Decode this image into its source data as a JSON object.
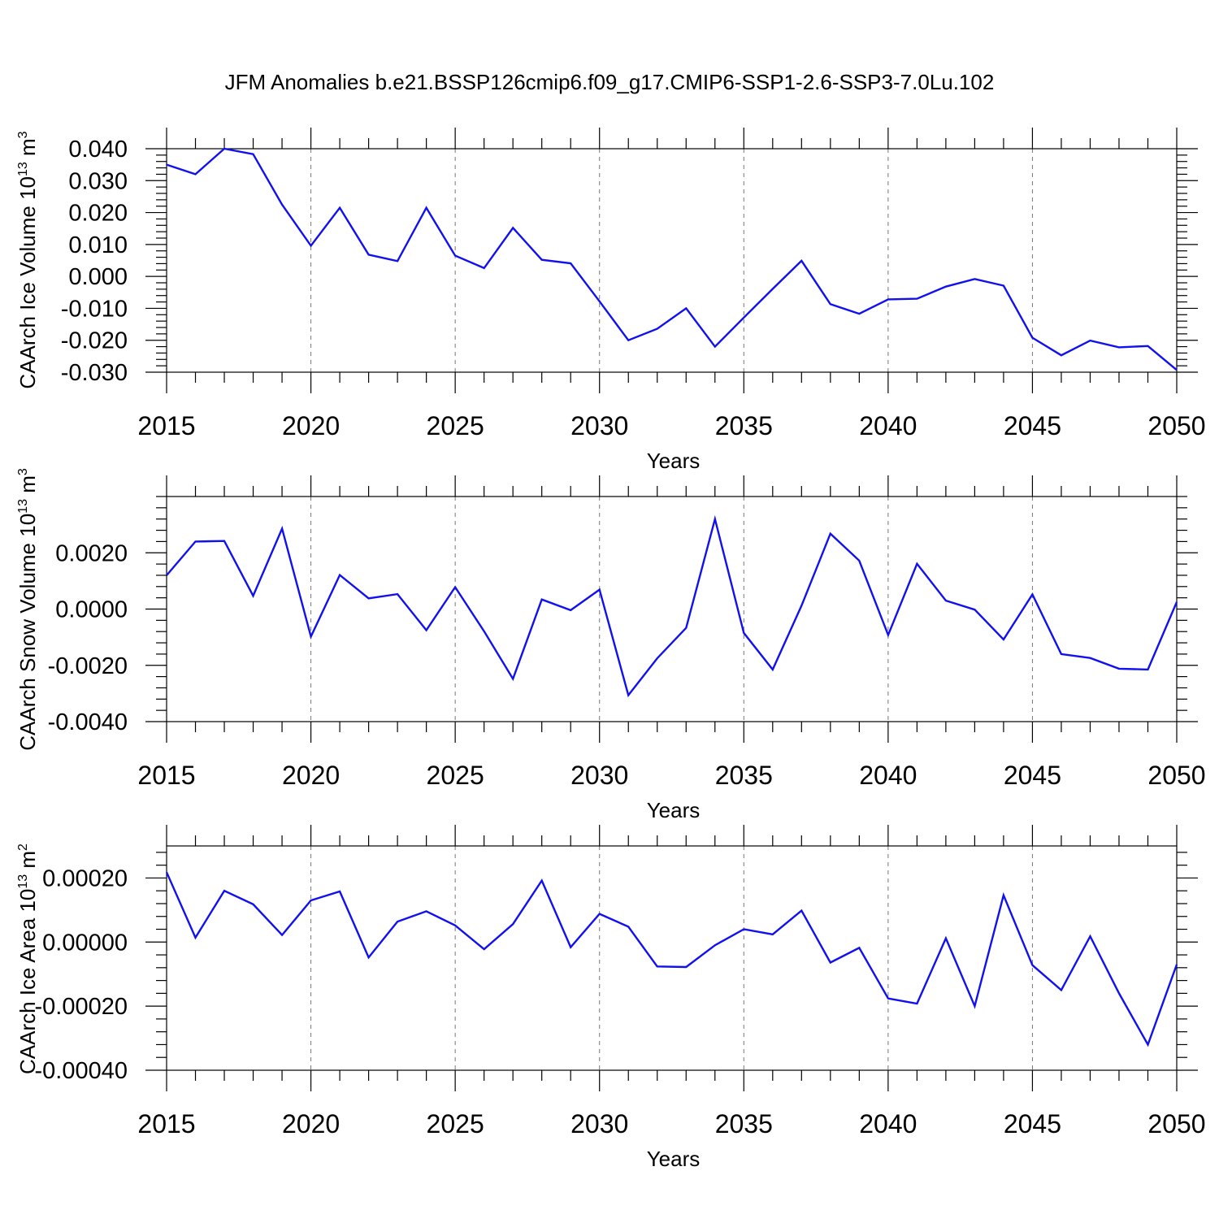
{
  "title": "JFM Anomalies b.e21.BSSP126cmip6.f09_g17.CMIP6-SSP1-2.6-SSP3-7.0Lu.102",
  "colors": {
    "series": "#1010f0",
    "axes": "#000000",
    "grid": "#777777"
  },
  "chart_data": [
    {
      "type": "line",
      "xlabel": "Years",
      "ylabel": "CAArch Ice Volume 10",
      "ylabel_exp": "13",
      "ylabel_unit": " m",
      "ylabel_unit_exp": "3",
      "xlim": [
        2015,
        2050
      ],
      "ylim": [
        -0.03,
        0.04
      ],
      "grid": "dashed vertical at major x ticks",
      "xticks": [
        "2015",
        "2020",
        "2025",
        "2030",
        "2035",
        "2040",
        "2045",
        "2050"
      ],
      "yticks": [
        {
          "v": 0.04,
          "label": "0.040"
        },
        {
          "v": 0.03,
          "label": "0.030"
        },
        {
          "v": 0.02,
          "label": "0.020"
        },
        {
          "v": 0.01,
          "label": "0.010"
        },
        {
          "v": 0.0,
          "label": "0.000"
        },
        {
          "v": -0.01,
          "label": "-0.010"
        },
        {
          "v": -0.02,
          "label": "-0.020"
        },
        {
          "v": -0.03,
          "label": "-0.030"
        }
      ],
      "x": [
        2015,
        2016,
        2017,
        2018,
        2019,
        2020,
        2021,
        2022,
        2023,
        2024,
        2025,
        2026,
        2027,
        2028,
        2029,
        2030,
        2031,
        2032,
        2033,
        2034,
        2035,
        2036,
        2037,
        2038,
        2039,
        2040,
        2041,
        2042,
        2043,
        2044,
        2045,
        2046,
        2047,
        2048,
        2049,
        2050
      ],
      "values": [
        0.035,
        0.032,
        0.04,
        0.0383,
        0.0225,
        0.0096,
        0.0215,
        0.0068,
        0.0048,
        0.0215,
        0.0065,
        0.0026,
        0.0152,
        0.0052,
        0.0041,
        -0.0078,
        -0.02,
        -0.0164,
        -0.01,
        -0.022,
        -0.0129,
        -0.0039,
        0.0049,
        -0.0087,
        -0.0117,
        -0.0072,
        -0.007,
        -0.0032,
        -0.0008,
        -0.0029,
        -0.0192,
        -0.0247,
        -0.0201,
        -0.0222,
        -0.0218,
        -0.0293
      ]
    },
    {
      "type": "line",
      "xlabel": "Years",
      "ylabel": "CAArch Snow Volume 10",
      "ylabel_exp": "13",
      "ylabel_unit": " m",
      "ylabel_unit_exp": "3",
      "xlim": [
        2015,
        2050
      ],
      "ylim": [
        -0.004,
        0.004
      ],
      "grid": "dashed vertical at major x ticks",
      "xticks": [
        "2015",
        "2020",
        "2025",
        "2030",
        "2035",
        "2040",
        "2045",
        "2050"
      ],
      "yticks": [
        {
          "v": 0.002,
          "label": "0.0020"
        },
        {
          "v": 0.0,
          "label": "0.0000"
        },
        {
          "v": -0.002,
          "label": "-0.0020"
        },
        {
          "v": -0.004,
          "label": "-0.0040"
        }
      ],
      "x": [
        2015,
        2016,
        2017,
        2018,
        2019,
        2020,
        2021,
        2022,
        2023,
        2024,
        2025,
        2026,
        2027,
        2028,
        2029,
        2030,
        2031,
        2032,
        2033,
        2034,
        2035,
        2036,
        2037,
        2038,
        2039,
        2040,
        2041,
        2042,
        2043,
        2044,
        2045,
        2046,
        2047,
        2048,
        2049,
        2050
      ],
      "values": [
        0.0012,
        0.0024,
        0.00242,
        0.00047,
        0.00286,
        -0.00098,
        0.00121,
        0.00038,
        0.00053,
        -0.00075,
        0.00078,
        -0.00079,
        -0.00248,
        0.00034,
        -4e-05,
        0.00069,
        -0.00306,
        -0.00175,
        -0.00067,
        0.0032,
        -0.00085,
        -0.00215,
        0.00012,
        0.00268,
        0.00172,
        -0.00092,
        0.00161,
        0.0003,
        -2e-05,
        -0.00108,
        0.00052,
        -0.0016,
        -0.00174,
        -0.00212,
        -0.00215,
        0.00025
      ]
    },
    {
      "type": "line",
      "xlabel": "Years",
      "ylabel": "CAArch Ice Area 10",
      "ylabel_exp": "13",
      "ylabel_unit": " m",
      "ylabel_unit_exp": "2",
      "xlim": [
        2015,
        2050
      ],
      "ylim": [
        -0.0004,
        0.0003
      ],
      "grid": "dashed vertical at major x ticks",
      "xticks": [
        "2015",
        "2020",
        "2025",
        "2030",
        "2035",
        "2040",
        "2045",
        "2050"
      ],
      "yticks": [
        {
          "v": 0.0002,
          "label": "0.00020"
        },
        {
          "v": 0.0,
          "label": "0.00000"
        },
        {
          "v": -0.0002,
          "label": "-0.00020"
        },
        {
          "v": -0.0004,
          "label": "-0.00040"
        }
      ],
      "x": [
        2015,
        2016,
        2017,
        2018,
        2019,
        2020,
        2021,
        2022,
        2023,
        2024,
        2025,
        2026,
        2027,
        2028,
        2029,
        2030,
        2031,
        2032,
        2033,
        2034,
        2035,
        2036,
        2037,
        2038,
        2039,
        2040,
        2041,
        2042,
        2043,
        2044,
        2045,
        2046,
        2047,
        2048,
        2049,
        2050
      ],
      "values": [
        0.000218,
        1.4e-05,
        0.00016,
        0.000118,
        2.2e-05,
        0.00013,
        0.000158,
        -4.8e-05,
        6.4e-05,
        9.6e-05,
        5.2e-05,
        -2.2e-05,
        5.6e-05,
        0.000192,
        -1.6e-05,
        8.8e-05,
        4.8e-05,
        -7.6e-05,
        -7.8e-05,
        -1e-05,
        4e-05,
        2.4e-05,
        9.8e-05,
        -6.4e-05,
        -1.8e-05,
        -0.000176,
        -0.000192,
        1.2e-05,
        -0.0002,
        0.000146,
        -7.2e-05,
        -0.00015,
        1.8e-05,
        -0.00016,
        -0.00032,
        -7e-05
      ]
    }
  ]
}
